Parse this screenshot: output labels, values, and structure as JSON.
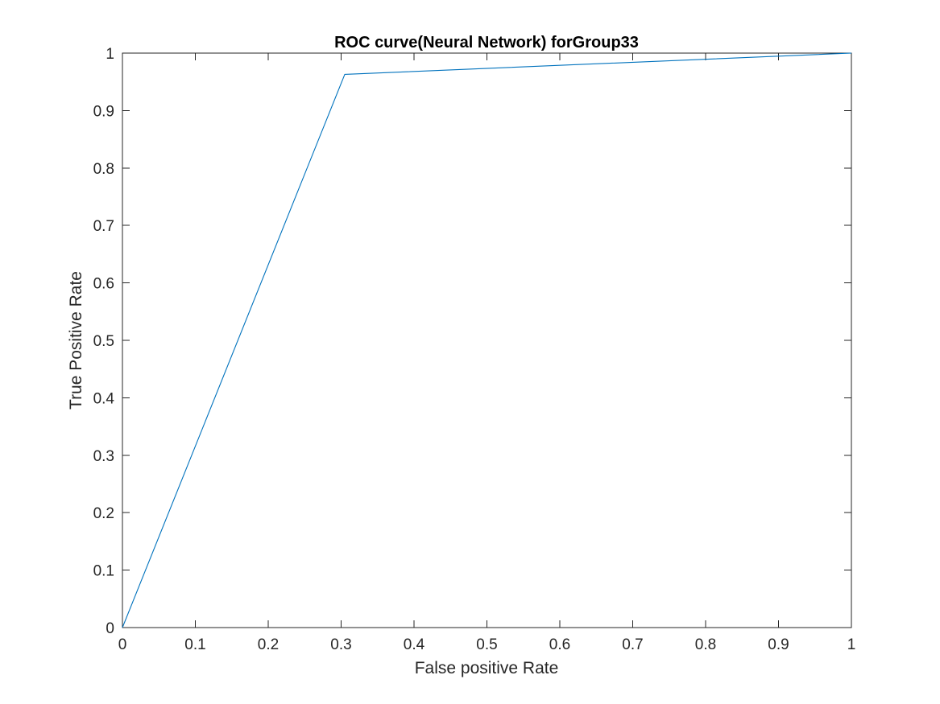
{
  "chart_data": {
    "type": "line",
    "title": "ROC curve(Neural Network) forGroup33",
    "xlabel": "False positive Rate",
    "ylabel": "True Positive Rate",
    "xlim": [
      0,
      1
    ],
    "ylim": [
      0,
      1
    ],
    "xticks": [
      0,
      0.1,
      0.2,
      0.3,
      0.4,
      0.5,
      0.6,
      0.7,
      0.8,
      0.9,
      1
    ],
    "yticks": [
      0,
      0.1,
      0.2,
      0.3,
      0.4,
      0.5,
      0.6,
      0.7,
      0.8,
      0.9,
      1
    ],
    "xtick_labels": [
      "0",
      "0.1",
      "0.2",
      "0.3",
      "0.4",
      "0.5",
      "0.6",
      "0.7",
      "0.8",
      "0.9",
      "1"
    ],
    "ytick_labels": [
      "0",
      "0.1",
      "0.2",
      "0.3",
      "0.4",
      "0.5",
      "0.6",
      "0.7",
      "0.8",
      "0.9",
      "1"
    ],
    "grid": false,
    "box": true,
    "series": [
      {
        "x": [
          0,
          0.305,
          1
        ],
        "y": [
          0,
          0.963,
          1
        ],
        "color": "#0072BD"
      }
    ]
  }
}
